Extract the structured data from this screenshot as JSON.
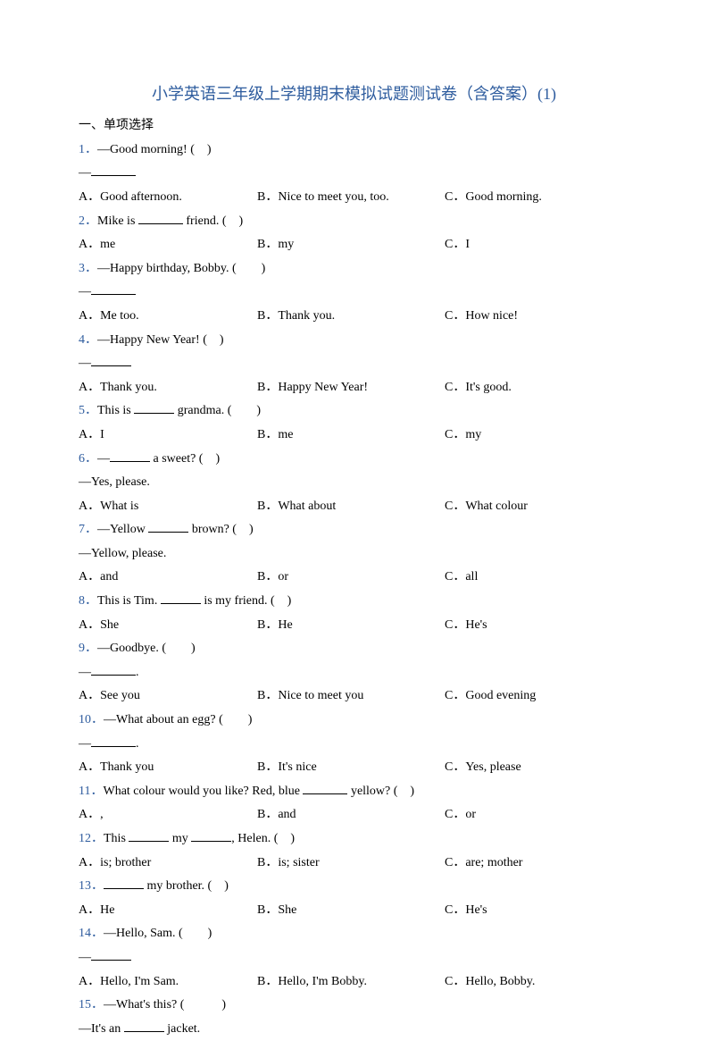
{
  "title": "小学英语三年级上学期期末模拟试题测试卷（含答案）(1)",
  "section": "一、单项选择",
  "q1": {
    "num": "1．",
    "text": "—Good morning! (　)",
    "reply": "—",
    "a": "A．Good afternoon.",
    "b": "B．Nice to meet you, too.",
    "c": "C．Good morning."
  },
  "q2": {
    "num": "2．",
    "text": "Mike is _________ friend. (　)",
    "a": "A．me",
    "b": "B．my",
    "c": "C．I"
  },
  "q3": {
    "num": "3．",
    "text": "—Happy birthday, Bobby. (　　)",
    "reply": "—_________",
    "a": "A．Me too.",
    "b": "B．Thank you.",
    "c": "C．How nice!"
  },
  "q4": {
    "num": "4．",
    "text": "—Happy New Year! (　)",
    "reply": "—_______",
    "a": "A．Thank you.",
    "b": "B．Happy New Year!",
    "c": "C．It's good."
  },
  "q5": {
    "num": "5．",
    "text": "This is _______ grandma. (　　)",
    "a": "A．I",
    "b": "B．me",
    "c": "C．my"
  },
  "q6": {
    "num": "6．",
    "text": "—_______ a sweet? (　)",
    "reply": "—Yes, please.",
    "a": "A．What is",
    "b": "B．What about",
    "c": "C．What colour"
  },
  "q7": {
    "num": "7．",
    "text": "—Yellow _______ brown? (　)",
    "reply": "—Yellow, please.",
    "a": "A．and",
    "b": "B．or",
    "c": "C．all"
  },
  "q8": {
    "num": "8．",
    "text": "This is Tim. _______ is my friend. (　)",
    "a": "A．She",
    "b": "B．He",
    "c": "C．He's"
  },
  "q9": {
    "num": "9．",
    "text": "—Goodbye. (　　)",
    "reply": "—_________.",
    "a": "A．See you",
    "b": "B．Nice to meet you",
    "c": "C．Good evening"
  },
  "q10": {
    "num": "10．",
    "text": "—What about an egg? (　　)",
    "reply": "—_________.",
    "a": "A．Thank you",
    "b": "B．It's nice",
    "c": "C．Yes, please"
  },
  "q11": {
    "num": "11．",
    "text": "What colour would you like? Red, blue ________ yellow? (　)",
    "a": "A．,",
    "b": "B．and",
    "c": "C．or"
  },
  "q12": {
    "num": "12．",
    "text": "This _______ my _______, Helen. (　)",
    "a": "A．is; brother",
    "b": "B．is; sister",
    "c": "C．are; mother"
  },
  "q13": {
    "num": "13．",
    "text": "_______ my brother. (　)",
    "a": "A．He",
    "b": "B．She",
    "c": "C．He's"
  },
  "q14": {
    "num": "14．",
    "text": "—Hello, Sam. (　　)",
    "reply": "—_______",
    "a": "A．Hello, I'm Sam.",
    "b": "B．Hello, I'm Bobby.",
    "c": "C．Hello, Bobby."
  },
  "q15": {
    "num": "15．",
    "text": "—What's this? (　　　)",
    "reply": "—It's an ______ jacket."
  }
}
